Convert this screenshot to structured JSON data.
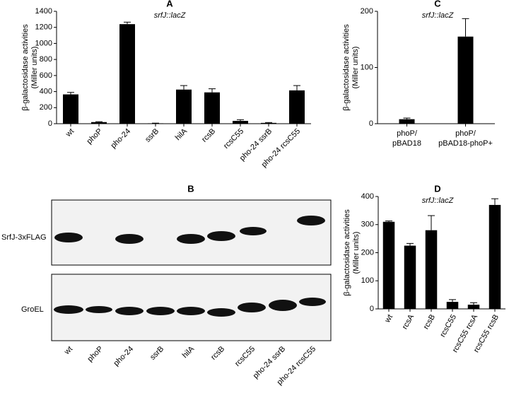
{
  "chart_data": [
    {
      "type": "bar",
      "title": "A",
      "subtitle": "srfJ::lacZ",
      "ylabel": [
        "β-galactosidase activities",
        "(Miller units)"
      ],
      "categories": [
        "wt",
        "phoP",
        "pho-24",
        "ssrB",
        "hilA",
        "rcsB",
        "rcsC55",
        "pho-24 ssrB",
        "pho-24 rcsC55"
      ],
      "values": [
        365,
        20,
        1240,
        5,
        425,
        390,
        35,
        10,
        415
      ],
      "errors": [
        25,
        5,
        25,
        2,
        50,
        45,
        15,
        5,
        60
      ],
      "ylim": [
        0,
        1400
      ],
      "yticks": [
        0,
        200,
        400,
        600,
        800,
        1000,
        1200,
        1400
      ],
      "color": "#000000",
      "label_rotation": -45
    },
    {
      "type": "bar",
      "title": "C",
      "subtitle": "srfJ::lacZ",
      "ylabel": [
        "β-galactosidase activities",
        "(Miller units)"
      ],
      "categories": [
        [
          "phoP/",
          "pBAD18"
        ],
        [
          "phoP/",
          "pBAD18-phoP+"
        ]
      ],
      "values": [
        8,
        155
      ],
      "errors": [
        2,
        32
      ],
      "ylim": [
        0,
        200
      ],
      "yticks": [
        0,
        100,
        200
      ],
      "color": "#000000",
      "label_rotation": 0
    },
    {
      "type": "bar",
      "title": "D",
      "subtitle": "srfJ::lacZ",
      "ylabel": [
        "β-galactosidase activities",
        "(Miller units)"
      ],
      "categories": [
        "wt",
        "rcsA",
        "rcsB",
        "rcsC55",
        "rcsC55 rcsA",
        "rcsC55 rcsB"
      ],
      "values": [
        310,
        225,
        280,
        25,
        15,
        370
      ],
      "errors": [
        3,
        8,
        52,
        8,
        7,
        22
      ],
      "ylim": [
        0,
        400
      ],
      "yticks": [
        0,
        100,
        200,
        300,
        400
      ],
      "color": "#000000",
      "label_rotation": -60
    }
  ],
  "blot": {
    "title": "B",
    "rows": [
      "SrfJ-3xFLAG",
      "GroEL"
    ],
    "lanes": [
      "wt",
      "phoP",
      "pho-24",
      "ssrB",
      "hilA",
      "rcsB",
      "rcsC55",
      "pho-24 ssrB",
      "pho-24 rcsC55"
    ]
  }
}
